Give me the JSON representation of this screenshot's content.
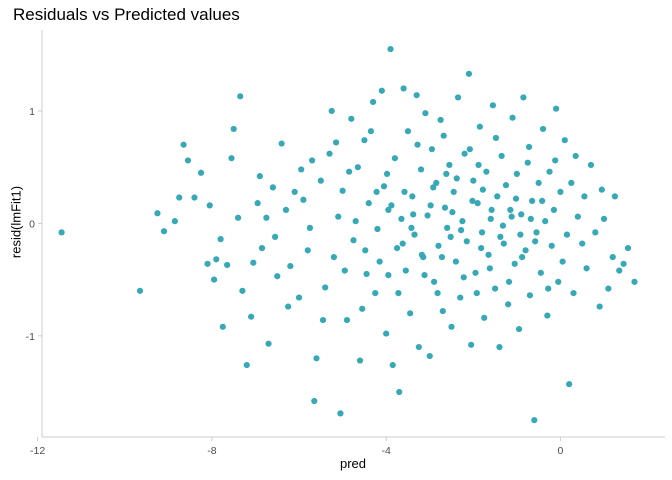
{
  "chart_data": {
    "type": "scatter",
    "title": "Residuals vs Predicted values",
    "xlabel": "pred",
    "ylabel": "resid(lmFit1)",
    "xlim": [
      -11.9,
      2.4
    ],
    "ylim": [
      -1.9,
      1.72
    ],
    "x_ticks": [
      -12,
      -8,
      -4,
      0
    ],
    "x_tick_labels": [
      "-12",
      "-8",
      "-4",
      "0"
    ],
    "y_ticks": [
      -1,
      0,
      1
    ],
    "y_tick_labels": [
      "-1",
      "0",
      "1"
    ],
    "grid": false,
    "legend": "none",
    "point_color": "#36a8b6",
    "series": [
      {
        "points": [
          [
            -11.45,
            -0.08
          ],
          [
            -9.65,
            -0.6
          ],
          [
            -9.25,
            0.09
          ],
          [
            -9.1,
            -0.07
          ],
          [
            -8.85,
            0.02
          ],
          [
            -8.75,
            0.23
          ],
          [
            -8.65,
            0.7
          ],
          [
            -8.55,
            0.56
          ],
          [
            -8.4,
            0.23
          ],
          [
            -8.25,
            0.45
          ],
          [
            -8.1,
            -0.36
          ],
          [
            -8.05,
            0.16
          ],
          [
            -7.95,
            -0.5
          ],
          [
            -7.9,
            -0.32
          ],
          [
            -7.8,
            -0.14
          ],
          [
            -7.75,
            -0.92
          ],
          [
            -7.65,
            -0.37
          ],
          [
            -7.55,
            0.58
          ],
          [
            -7.5,
            0.84
          ],
          [
            -7.4,
            0.05
          ],
          [
            -7.35,
            1.13
          ],
          [
            -7.3,
            -0.6
          ],
          [
            -7.2,
            -1.26
          ],
          [
            -7.1,
            -0.83
          ],
          [
            -7.05,
            -0.35
          ],
          [
            -6.95,
            0.18
          ],
          [
            -6.85,
            -0.22
          ],
          [
            -6.75,
            0.05
          ],
          [
            -6.7,
            -1.07
          ],
          [
            -6.6,
            0.32
          ],
          [
            -6.5,
            -0.47
          ],
          [
            -6.4,
            0.71
          ],
          [
            -6.3,
            0.12
          ],
          [
            -6.2,
            -0.38
          ],
          [
            -6.1,
            0.28
          ],
          [
            -6.0,
            -0.66
          ],
          [
            -5.9,
            0.21
          ],
          [
            -5.8,
            -0.24
          ],
          [
            -5.7,
            0.56
          ],
          [
            -5.65,
            -1.58
          ],
          [
            -5.6,
            -1.2
          ],
          [
            -5.5,
            0.38
          ],
          [
            -5.4,
            -0.57
          ],
          [
            -5.3,
            0.62
          ],
          [
            -5.25,
            1.0
          ],
          [
            -5.2,
            -0.3
          ],
          [
            -5.1,
            0.06
          ],
          [
            -5.05,
            -1.69
          ],
          [
            -5.0,
            0.29
          ],
          [
            -4.9,
            -0.86
          ],
          [
            -4.85,
            0.46
          ],
          [
            -4.8,
            0.93
          ],
          [
            -4.75,
            -0.15
          ],
          [
            -4.7,
            0.02
          ],
          [
            -4.6,
            -1.22
          ],
          [
            -4.5,
            0.74
          ],
          [
            -4.45,
            -0.45
          ],
          [
            -4.4,
            0.18
          ],
          [
            -4.3,
            1.08
          ],
          [
            -4.25,
            -0.62
          ],
          [
            -4.2,
            -0.05
          ],
          [
            -4.1,
            1.18
          ],
          [
            -4.05,
            0.33
          ],
          [
            -4.0,
            -0.98
          ],
          [
            -3.95,
            0.12
          ],
          [
            -3.9,
            1.55
          ],
          [
            -3.85,
            -1.26
          ],
          [
            -3.8,
            0.58
          ],
          [
            -3.75,
            -0.22
          ],
          [
            -3.7,
            -1.5
          ],
          [
            -3.65,
            0.04
          ],
          [
            -3.6,
            1.2
          ],
          [
            -3.55,
            -0.42
          ],
          [
            -3.5,
            0.82
          ],
          [
            -3.45,
            -0.8
          ],
          [
            -3.4,
            0.24
          ],
          [
            -3.35,
            -0.1
          ],
          [
            -3.3,
            1.14
          ],
          [
            -3.25,
            -1.1
          ],
          [
            -3.2,
            0.48
          ],
          [
            -3.15,
            -0.3
          ],
          [
            -3.1,
            0.98
          ],
          [
            -3.05,
            0.07
          ],
          [
            -3.0,
            -1.18
          ],
          [
            -2.95,
            0.66
          ],
          [
            -2.9,
            -0.52
          ],
          [
            -2.85,
            0.36
          ],
          [
            -2.8,
            -0.2
          ],
          [
            -2.75,
            0.92
          ],
          [
            -2.7,
            -0.78
          ],
          [
            -2.65,
            0.14
          ],
          [
            -2.6,
            -0.04
          ],
          [
            -2.55,
            0.52
          ],
          [
            -2.5,
            -0.92
          ],
          [
            -2.45,
            0.28
          ],
          [
            -2.4,
            -0.34
          ],
          [
            -2.35,
            1.12
          ],
          [
            -2.3,
            -0.66
          ],
          [
            -2.25,
            0.02
          ],
          [
            -2.2,
            0.62
          ],
          [
            -2.15,
            -0.16
          ],
          [
            -2.1,
            1.33
          ],
          [
            -2.05,
            -1.08
          ],
          [
            -2.0,
            0.38
          ],
          [
            -1.95,
            -0.44
          ],
          [
            -1.9,
            0.18
          ],
          [
            -1.85,
            0.86
          ],
          [
            -1.8,
            -0.08
          ],
          [
            -1.75,
            -0.84
          ],
          [
            -1.7,
            0.46
          ],
          [
            -1.65,
            -0.28
          ],
          [
            -1.6,
            0.04
          ],
          [
            -1.55,
            1.05
          ],
          [
            -1.5,
            -0.58
          ],
          [
            -1.45,
            0.24
          ],
          [
            -1.4,
            -1.1
          ],
          [
            -1.35,
            0.6
          ],
          [
            -1.3,
            -0.18
          ],
          [
            -1.25,
            0.34
          ],
          [
            -1.2,
            -0.72
          ],
          [
            -1.15,
            0.12
          ],
          [
            -1.1,
            0.94
          ],
          [
            -1.05,
            -0.36
          ],
          [
            -1.0,
            0.44
          ],
          [
            -0.95,
            -0.94
          ],
          [
            -0.9,
            0.08
          ],
          [
            -0.85,
            1.12
          ],
          [
            -0.8,
            -0.24
          ],
          [
            -0.75,
            0.54
          ],
          [
            -0.7,
            -0.64
          ],
          [
            -0.65,
            0.2
          ],
          [
            -0.6,
            -1.75
          ],
          [
            -0.55,
            -0.08
          ],
          [
            -0.5,
            0.36
          ],
          [
            -0.45,
            -0.44
          ],
          [
            -0.4,
            0.84
          ],
          [
            -0.35,
            0.02
          ],
          [
            -0.3,
            -0.82
          ],
          [
            -0.25,
            0.46
          ],
          [
            -0.2,
            -0.2
          ],
          [
            -0.15,
            0.12
          ],
          [
            -0.1,
            1.02
          ],
          [
            -0.05,
            -0.52
          ],
          [
            0.0,
            0.28
          ],
          [
            0.05,
            -0.34
          ],
          [
            0.1,
            0.74
          ],
          [
            0.15,
            -0.1
          ],
          [
            0.2,
            -1.43
          ],
          [
            0.25,
            0.36
          ],
          [
            0.3,
            -0.62
          ],
          [
            0.35,
            0.6
          ],
          [
            0.4,
            0.06
          ],
          [
            0.5,
            -0.18
          ],
          [
            0.55,
            0.24
          ],
          [
            0.6,
            -0.4
          ],
          [
            0.7,
            0.52
          ],
          [
            0.8,
            -0.08
          ],
          [
            0.9,
            -0.74
          ],
          [
            0.95,
            0.3
          ],
          [
            1.0,
            0.04
          ],
          [
            1.1,
            -0.58
          ],
          [
            1.2,
            -0.3
          ],
          [
            1.25,
            0.24
          ],
          [
            1.35,
            -0.42
          ],
          [
            1.45,
            -0.36
          ],
          [
            1.55,
            -0.22
          ],
          [
            1.7,
            -0.52
          ],
          [
            -6.9,
            0.42
          ],
          [
            -6.55,
            -0.12
          ],
          [
            -6.25,
            -0.74
          ],
          [
            -5.95,
            0.48
          ],
          [
            -5.75,
            -0.04
          ],
          [
            -5.45,
            -0.86
          ],
          [
            -5.15,
            0.72
          ],
          [
            -4.95,
            -0.42
          ],
          [
            -4.65,
            0.5
          ],
          [
            -4.55,
            -0.76
          ],
          [
            -4.35,
            0.82
          ],
          [
            -4.15,
            -0.34
          ],
          [
            -3.98,
            0.44
          ],
          [
            -3.72,
            -0.62
          ],
          [
            -3.58,
            0.28
          ],
          [
            -3.42,
            -0.04
          ],
          [
            -3.28,
            0.7
          ],
          [
            -3.12,
            -0.46
          ],
          [
            -2.98,
            0.16
          ],
          [
            -2.82,
            -0.62
          ],
          [
            -2.68,
            0.78
          ],
          [
            -2.52,
            -0.12
          ],
          [
            -2.38,
            0.4
          ],
          [
            -2.22,
            -0.48
          ],
          [
            -2.08,
            0.66
          ],
          [
            -1.92,
            -0.62
          ],
          [
            -1.78,
            0.3
          ],
          [
            -1.62,
            -0.4
          ],
          [
            -1.48,
            0.76
          ],
          [
            -1.32,
            -0.02
          ],
          [
            -1.18,
            -0.52
          ],
          [
            -1.02,
            0.22
          ],
          [
            -0.88,
            -0.3
          ],
          [
            -0.72,
            0.68
          ],
          [
            -0.58,
            -0.16
          ],
          [
            -0.42,
            0.2
          ],
          [
            -0.28,
            -0.58
          ],
          [
            -0.12,
            0.56
          ],
          [
            -3.88,
            0.16
          ],
          [
            -3.62,
            -0.18
          ],
          [
            -3.38,
            0.08
          ],
          [
            -3.18,
            -0.28
          ],
          [
            -2.92,
            0.32
          ],
          [
            -2.72,
            -0.3
          ],
          [
            -2.48,
            0.1
          ],
          [
            -2.28,
            -0.06
          ],
          [
            -2.02,
            0.2
          ],
          [
            -1.82,
            -0.22
          ],
          [
            -1.58,
            0.12
          ],
          [
            -1.38,
            -0.12
          ],
          [
            -1.12,
            0.06
          ],
          [
            -0.92,
            -0.1
          ],
          [
            -0.68,
            0.04
          ],
          [
            -4.48,
            -0.24
          ],
          [
            -4.22,
            0.28
          ],
          [
            -3.95,
            -0.46
          ],
          [
            -2.62,
            0.44
          ],
          [
            -1.88,
            0.52
          ]
        ]
      }
    ]
  }
}
